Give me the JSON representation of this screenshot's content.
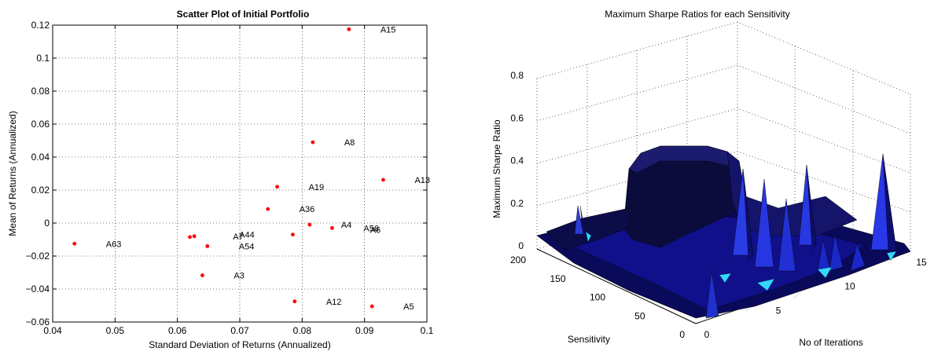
{
  "chart_data": [
    {
      "type": "scatter",
      "title": "Scatter Plot of Initial Portfolio",
      "xlabel": "Standard Deviation of Returns (Annualized)",
      "ylabel": "Mean of Returns (Annualized)",
      "xlim": [
        0.04,
        0.1
      ],
      "ylim": [
        -0.06,
        0.12
      ],
      "xticks": [
        "0.04",
        "0.05",
        "0.06",
        "0.07",
        "0.08",
        "0.09",
        "0.1"
      ],
      "yticks": [
        "−0.06",
        "−0.04",
        "−0.02",
        "0",
        "0.02",
        "0.04",
        "0.06",
        "0.08",
        "0.1",
        "0.12"
      ],
      "grid": true,
      "marker_color": "#ff0000",
      "points": [
        {
          "x": 0.0435,
          "y": -0.0125,
          "label": "A63"
        },
        {
          "x": 0.062,
          "y": -0.0085,
          "label": ""
        },
        {
          "x": 0.0627,
          "y": -0.008,
          "label": ""
        },
        {
          "x": 0.064,
          "y": -0.0317,
          "label": "A3"
        },
        {
          "x": 0.0648,
          "y": -0.014,
          "label": "A54"
        },
        {
          "x": 0.0745,
          "y": 0.0085,
          "label": "A36"
        },
        {
          "x": 0.076,
          "y": 0.022,
          "label": "A19"
        },
        {
          "x": 0.0785,
          "y": -0.007,
          "label": ""
        },
        {
          "x": 0.0788,
          "y": -0.0475,
          "label": "A12"
        },
        {
          "x": 0.0812,
          "y": -0.001,
          "label": "A4"
        },
        {
          "x": 0.0817,
          "y": 0.049,
          "label": "A8"
        },
        {
          "x": 0.0848,
          "y": -0.003,
          "label": "A56"
        },
        {
          "x": 0.0875,
          "y": 0.1175,
          "label": "A15"
        },
        {
          "x": 0.0912,
          "y": -0.0505,
          "label": "A5"
        },
        {
          "x": 0.093,
          "y": 0.0262,
          "label": "A13"
        }
      ],
      "extra_annotations": [
        {
          "x": 0.067,
          "y": -0.008,
          "label": "A7"
        },
        {
          "x": 0.068,
          "y": -0.007,
          "label": "A44"
        },
        {
          "x": 0.089,
          "y": -0.004,
          "label": "A6"
        }
      ]
    },
    {
      "type": "surface",
      "title": "Maximum Sharpe Ratios for each Sensitivity",
      "xlabel": "No of Iterations",
      "ylabel": "Sensitivity",
      "zlabel": "Maximum Sharpe Ratio",
      "xlim": [
        0,
        15
      ],
      "ylim": [
        0,
        200
      ],
      "zlim": [
        0,
        0.8
      ],
      "xticks": [
        "0",
        "5",
        "10",
        "15"
      ],
      "yticks": [
        "0",
        "50",
        "100",
        "150",
        "200"
      ],
      "zticks": [
        "0",
        "0.2",
        "0.4",
        "0.6",
        "0.8"
      ],
      "grid": true,
      "surface_color": "#1a1ad8",
      "features": [
        {
          "name": "plateau",
          "x_range": [
            5,
            15
          ],
          "y_range": [
            120,
            180
          ],
          "z": 0.42
        },
        {
          "name": "peak",
          "x": 14,
          "y": 30,
          "z": 0.42
        },
        {
          "name": "peak",
          "x": 9,
          "y": 70,
          "z": 0.35
        },
        {
          "name": "peak",
          "x": 11,
          "y": 40,
          "z": 0.33
        },
        {
          "name": "peak",
          "x": 13,
          "y": 160,
          "z": 0.3
        }
      ]
    }
  ]
}
